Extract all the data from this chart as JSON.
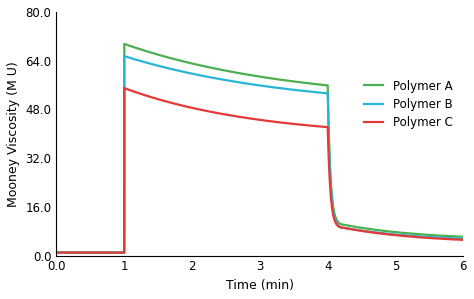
{
  "title": "",
  "xlabel": "Time (min)",
  "ylabel": "Mooney Viscosity (M U)",
  "xlim": [
    0.0,
    6.0
  ],
  "ylim": [
    0.0,
    80.0
  ],
  "xticks": [
    0.0,
    1,
    2,
    3,
    4,
    5,
    6
  ],
  "yticks": [
    0.0,
    16.0,
    32.0,
    48.0,
    64.0,
    80.0
  ],
  "series": [
    {
      "label": "Polymer A",
      "color": "#4CAF50",
      "peak": 69.5,
      "asymptote": 50.0,
      "tau1": 2.5,
      "drop_to": 10.0,
      "final": 5.0,
      "tau2": 1.2
    },
    {
      "label": "Polymer B",
      "color": "#29B6D6",
      "peak": 65.5,
      "asymptote": 48.0,
      "tau1": 2.5,
      "drop_to": 9.0,
      "final": 4.5,
      "tau2": 1.2
    },
    {
      "label": "Polymer C",
      "color": "#E53935",
      "peak": 55.0,
      "asymptote": 38.5,
      "tau1": 2.0,
      "drop_to": 9.0,
      "final": 4.0,
      "tau2": 1.2
    }
  ],
  "background_color": "#ffffff",
  "linewidth": 1.6
}
